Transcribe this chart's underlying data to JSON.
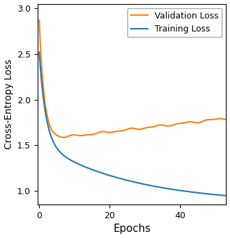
{
  "title": "",
  "xlabel": "Epochs",
  "ylabel": "Cross-Entropy Loss",
  "xlim": [
    -0.5,
    53
  ],
  "ylim": [
    0.85,
    3.05
  ],
  "yticks": [
    1.0,
    1.5,
    2.0,
    2.5,
    3.0
  ],
  "xticks": [
    0,
    20,
    40
  ],
  "val_color": "#ff7f0e",
  "train_color": "#1f77b4",
  "val_label": "Validation Loss",
  "train_label": "Training Loss",
  "legend_loc": "upper right",
  "figsize": [
    3.36,
    3.48
  ],
  "dpi": 100
}
